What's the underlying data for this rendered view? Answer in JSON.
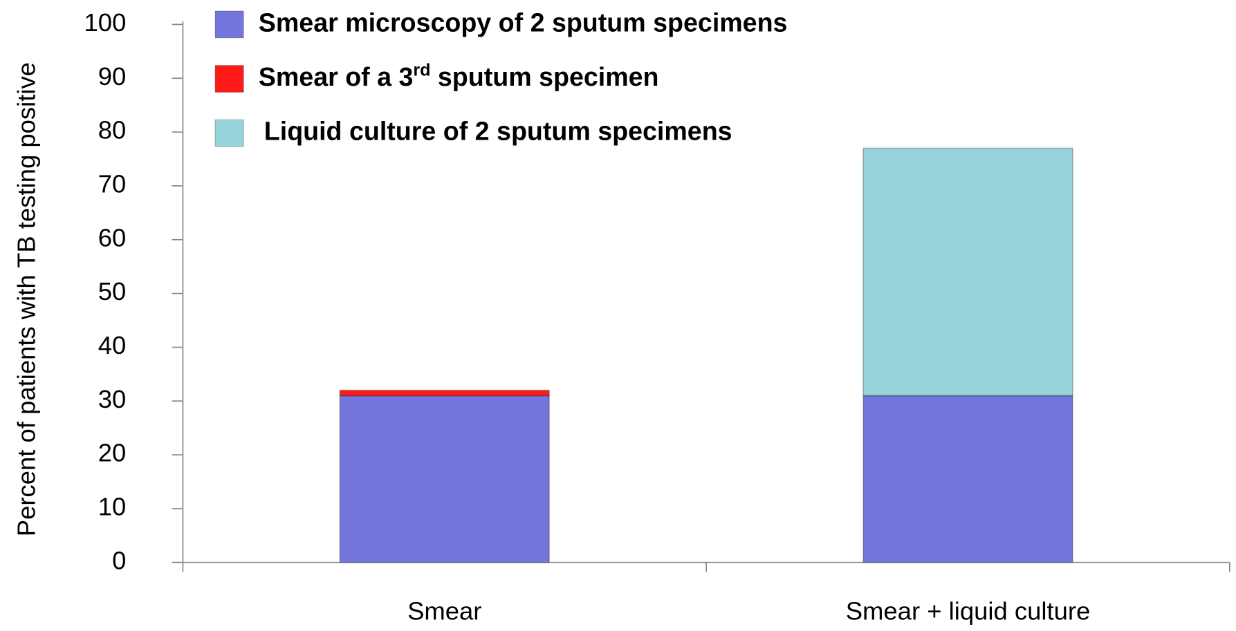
{
  "chart_data": {
    "type": "stacked_bar",
    "y_label": "Percent of patients with TB testing positive",
    "categories": [
      "Smear",
      "Smear + liquid culture"
    ],
    "series": [
      {
        "name": "Smear microscopy of 2 sputum specimens",
        "color": "#7476dd",
        "values": [
          31,
          31
        ]
      },
      {
        "name": "Smear of a 3rd sputum specimen",
        "color": "#ff1a1a",
        "values": [
          1,
          null
        ]
      },
      {
        "name": "Liquid culture of 2 sputum specimens",
        "color": "#96d3da",
        "values": [
          null,
          46
        ]
      }
    ],
    "ylim": [
      0,
      100
    ],
    "yticks": [
      0,
      10,
      20,
      30,
      40,
      50,
      60,
      70,
      80,
      90,
      100
    ],
    "grid": false,
    "legend": "upper left"
  }
}
